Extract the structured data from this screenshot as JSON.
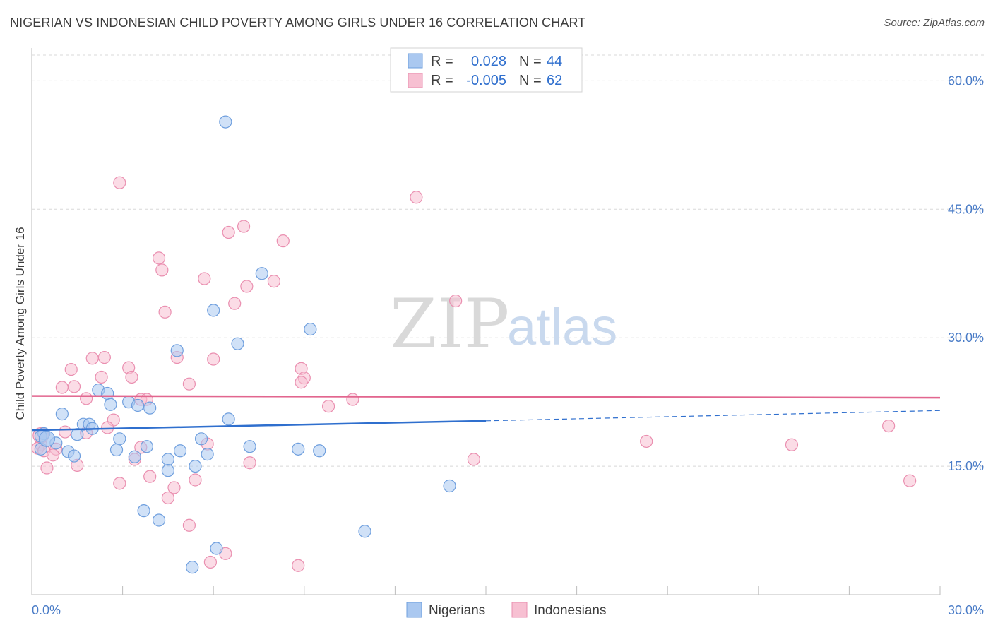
{
  "title": "NIGERIAN VS INDONESIAN CHILD POVERTY AMONG GIRLS UNDER 16 CORRELATION CHART",
  "source": "Source: ZipAtlas.com",
  "watermark": {
    "zip": "ZIP",
    "atlas": "atlas"
  },
  "colors": {
    "nigerians_fill": "#aac8f0",
    "nigerians_stroke": "#6f9fde",
    "nigerians_line": "#2f6fce",
    "indonesians_fill": "#f7c0d2",
    "indonesians_stroke": "#ea8fb0",
    "indonesians_line": "#e2668f",
    "grid": "#d8d8d8",
    "axis_text": "#4a7cc7"
  },
  "legend": {
    "rows": [
      {
        "r_label": "R =",
        "r_value": "0.028",
        "n_label": "N =",
        "n_value": "44"
      },
      {
        "r_label": "R =",
        "r_value": "-0.005",
        "n_label": "N =",
        "n_value": "62"
      }
    ]
  },
  "bottom_legend": [
    "Nigerians",
    "Indonesians"
  ],
  "chart_data": {
    "type": "scatter",
    "title": "NIGERIAN VS INDONESIAN CHILD POVERTY AMONG GIRLS UNDER 16 CORRELATION CHART",
    "xlabel": "",
    "ylabel": "Child Poverty Among Girls Under 16",
    "xlim": [
      0,
      30
    ],
    "ylim": [
      0,
      63
    ],
    "x_tick_labels": [
      "0.0%",
      "30.0%"
    ],
    "y_ticks": [
      15,
      30,
      45,
      60
    ],
    "y_tick_labels": [
      "15.0%",
      "30.0%",
      "45.0%",
      "60.0%"
    ],
    "grid": true,
    "legend_position": "top-center",
    "series": [
      {
        "name": "Nigerians",
        "r": 0.028,
        "n": 44,
        "trend": {
          "x_solid": [
            0,
            15
          ],
          "y_solid": [
            19.2,
            20.3
          ],
          "x_dashed": [
            15,
            30
          ],
          "y_dashed": [
            20.3,
            21.5
          ]
        },
        "points": [
          [
            6.4,
            55.2
          ],
          [
            7.6,
            37.5
          ],
          [
            6.0,
            33.2
          ],
          [
            9.2,
            31.0
          ],
          [
            6.8,
            29.3
          ],
          [
            4.8,
            28.5
          ],
          [
            2.2,
            23.9
          ],
          [
            2.5,
            23.5
          ],
          [
            3.2,
            22.5
          ],
          [
            2.6,
            22.2
          ],
          [
            3.5,
            22.1
          ],
          [
            3.9,
            21.8
          ],
          [
            1.0,
            21.1
          ],
          [
            6.5,
            20.5
          ],
          [
            1.7,
            19.9
          ],
          [
            1.9,
            19.9
          ],
          [
            2.0,
            19.4
          ],
          [
            0.4,
            18.8
          ],
          [
            0.3,
            18.5
          ],
          [
            1.5,
            18.7
          ],
          [
            2.9,
            18.2
          ],
          [
            5.6,
            18.2
          ],
          [
            0.8,
            17.7
          ],
          [
            3.8,
            17.3
          ],
          [
            7.2,
            17.3
          ],
          [
            8.8,
            17.0
          ],
          [
            0.3,
            17.0
          ],
          [
            1.2,
            16.7
          ],
          [
            2.8,
            16.9
          ],
          [
            4.9,
            16.8
          ],
          [
            9.5,
            16.8
          ],
          [
            5.8,
            16.4
          ],
          [
            1.4,
            16.2
          ],
          [
            3.4,
            16.1
          ],
          [
            4.5,
            15.8
          ],
          [
            5.4,
            15.0
          ],
          [
            4.5,
            14.5
          ],
          [
            13.8,
            12.7
          ],
          [
            3.7,
            9.8
          ],
          [
            4.2,
            8.7
          ],
          [
            11.0,
            7.4
          ],
          [
            6.1,
            5.4
          ],
          [
            5.3,
            3.2
          ],
          [
            0.5,
            18.2
          ]
        ]
      },
      {
        "name": "Indonesians",
        "r": -0.005,
        "n": 62,
        "trend": {
          "x_solid": [
            0,
            30
          ],
          "y_solid": [
            23.2,
            23.0
          ]
        },
        "points": [
          [
            2.9,
            48.1
          ],
          [
            12.7,
            46.4
          ],
          [
            7.0,
            43.0
          ],
          [
            6.5,
            42.3
          ],
          [
            8.3,
            41.3
          ],
          [
            4.2,
            39.3
          ],
          [
            4.3,
            37.9
          ],
          [
            5.7,
            36.9
          ],
          [
            8.0,
            36.6
          ],
          [
            7.1,
            36.0
          ],
          [
            14.0,
            34.3
          ],
          [
            6.7,
            34.0
          ],
          [
            4.4,
            33.0
          ],
          [
            2.0,
            27.6
          ],
          [
            2.4,
            27.7
          ],
          [
            4.8,
            27.7
          ],
          [
            6.0,
            27.5
          ],
          [
            3.2,
            26.5
          ],
          [
            1.3,
            26.3
          ],
          [
            8.9,
            26.4
          ],
          [
            2.3,
            25.4
          ],
          [
            3.3,
            25.4
          ],
          [
            9.0,
            25.3
          ],
          [
            8.9,
            24.8
          ],
          [
            5.2,
            24.6
          ],
          [
            1.0,
            24.2
          ],
          [
            1.4,
            24.3
          ],
          [
            1.8,
            22.9
          ],
          [
            3.6,
            22.8
          ],
          [
            3.8,
            22.8
          ],
          [
            10.6,
            22.8
          ],
          [
            9.8,
            22.0
          ],
          [
            2.7,
            20.4
          ],
          [
            2.5,
            19.5
          ],
          [
            28.3,
            19.7
          ],
          [
            1.1,
            19.0
          ],
          [
            1.8,
            18.9
          ],
          [
            20.3,
            17.9
          ],
          [
            25.1,
            17.5
          ],
          [
            5.8,
            17.6
          ],
          [
            3.6,
            17.2
          ],
          [
            0.3,
            17.5
          ],
          [
            0.2,
            17.1
          ],
          [
            0.8,
            17.0
          ],
          [
            0.4,
            16.8
          ],
          [
            0.7,
            16.3
          ],
          [
            3.4,
            15.8
          ],
          [
            14.6,
            15.8
          ],
          [
            7.2,
            15.4
          ],
          [
            1.5,
            15.1
          ],
          [
            0.5,
            14.8
          ],
          [
            3.9,
            13.8
          ],
          [
            5.4,
            13.4
          ],
          [
            2.9,
            13.0
          ],
          [
            4.7,
            12.5
          ],
          [
            4.5,
            11.3
          ],
          [
            29.0,
            13.3
          ],
          [
            5.2,
            8.1
          ],
          [
            6.4,
            4.8
          ],
          [
            5.9,
            3.8
          ],
          [
            8.8,
            3.4
          ],
          [
            0.3,
            18.6
          ]
        ]
      }
    ]
  }
}
